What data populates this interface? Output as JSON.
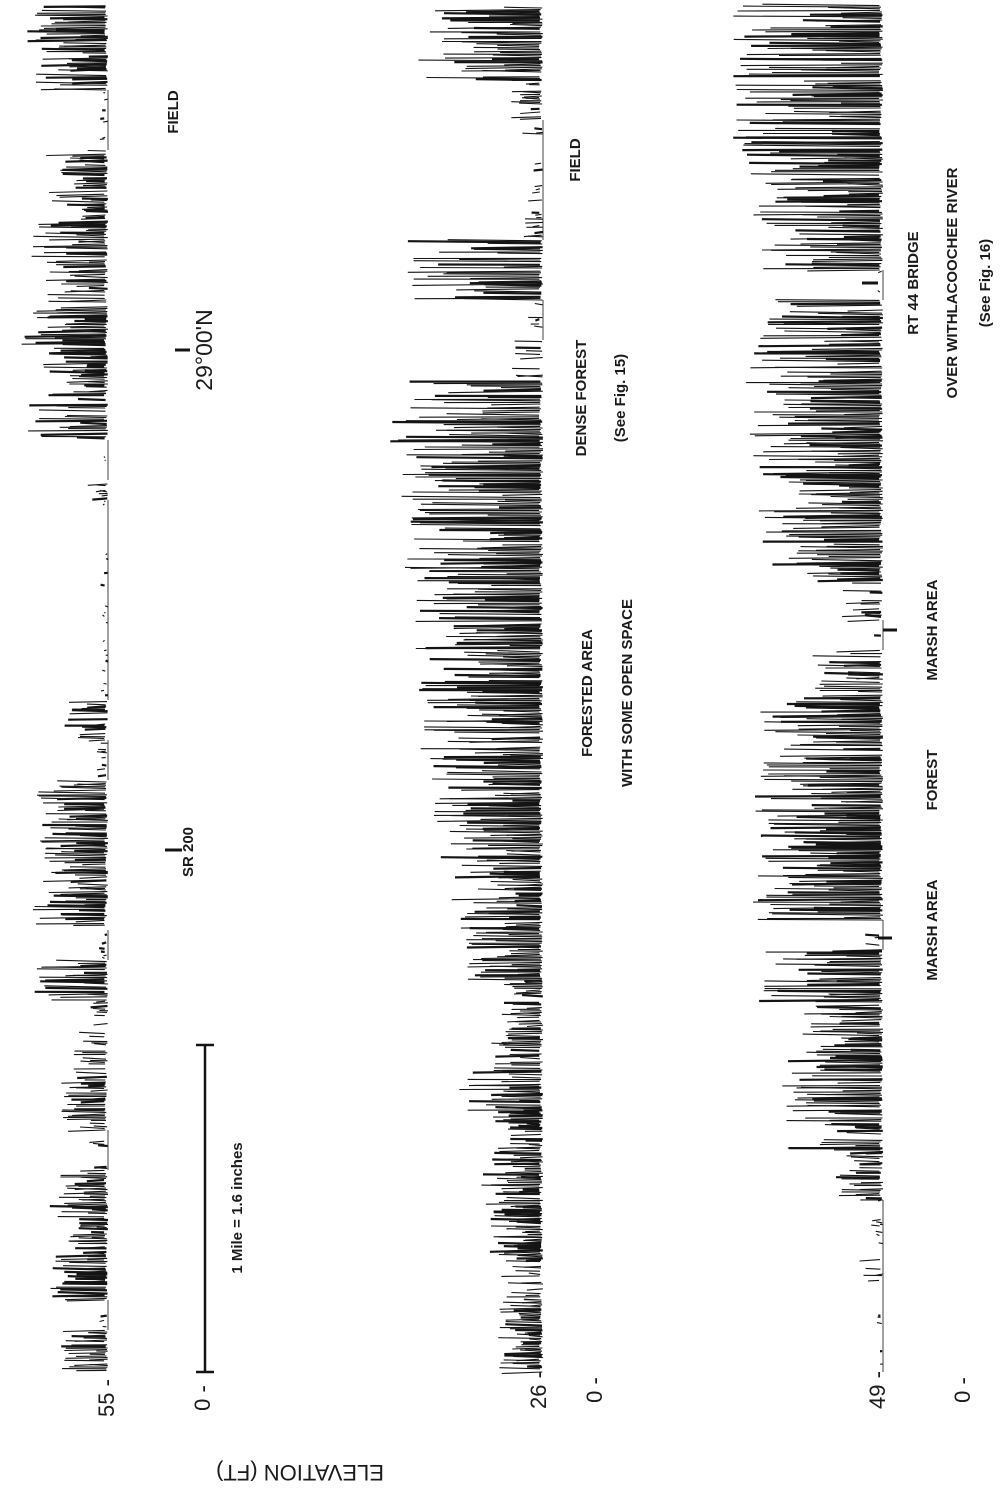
{
  "chart_data": {
    "type": "line",
    "ylabel": "ELEVATION (FT)",
    "scale_bar_label": "1 Mile = 1.6 inches",
    "latitude_label": "29°00'N",
    "profiles": [
      {
        "ticks": [
          {
            "label": "55 -"
          },
          {
            "label": "0 -"
          }
        ],
        "annotations": [
          {
            "lines": [
              "SR 200"
            ]
          },
          {
            "lines": [
              "FIELD"
            ]
          }
        ]
      },
      {
        "ticks": [
          {
            "label": "26 -"
          },
          {
            "label": "0 -"
          }
        ],
        "annotations": [
          {
            "lines": [
              "FORESTED AREA",
              "WITH SOME OPEN SPACE"
            ]
          },
          {
            "lines": [
              "DENSE FOREST",
              "(See Fig. 15)"
            ]
          },
          {
            "lines": [
              "FIELD"
            ]
          }
        ]
      },
      {
        "ticks": [
          {
            "label": "49 -"
          },
          {
            "label": "0 -"
          }
        ],
        "annotations": [
          {
            "lines": [
              "MARSH AREA"
            ]
          },
          {
            "lines": [
              "FOREST"
            ]
          },
          {
            "lines": [
              "MARSH AREA"
            ]
          },
          {
            "lines": [
              "RT 44 BRIDGE",
              "OVER WITHLACOOCHEE RIVER",
              "(See Fig. 16)"
            ]
          }
        ]
      }
    ]
  }
}
